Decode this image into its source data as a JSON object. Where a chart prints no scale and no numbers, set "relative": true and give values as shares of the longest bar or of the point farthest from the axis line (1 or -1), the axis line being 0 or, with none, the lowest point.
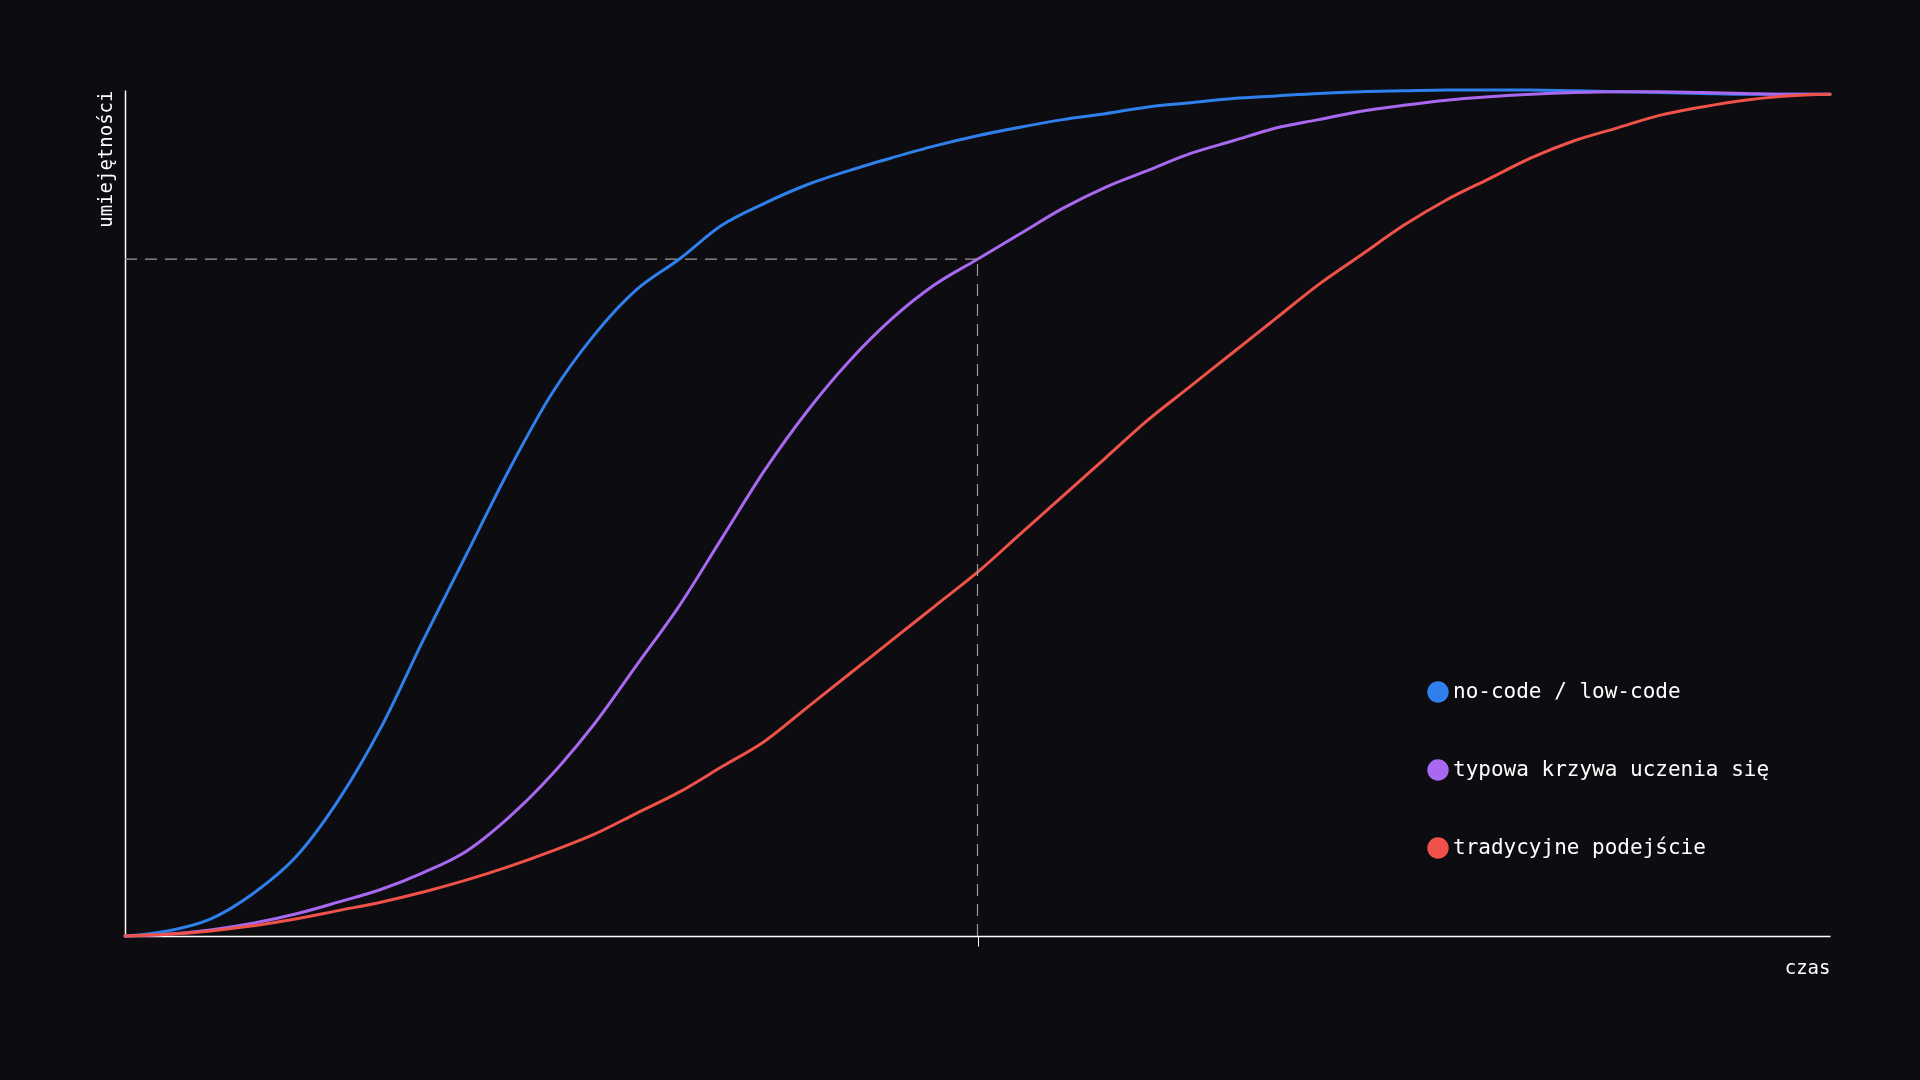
{
  "chart_data": {
    "type": "line",
    "relative": true,
    "xlabel": "czas",
    "ylabel": "umiejętności",
    "categories": [
      null,
      null,
      null,
      null,
      null,
      null,
      null,
      null,
      null,
      null,
      null,
      null,
      null,
      null,
      null,
      null,
      null,
      null,
      null,
      null,
      null,
      null,
      null,
      null,
      null,
      null,
      null,
      null,
      null,
      null,
      null,
      null,
      null,
      null,
      null,
      null,
      null,
      null,
      null,
      null,
      null
    ],
    "series": [
      {
        "name": "no-code / low-code",
        "color": "#2f80ed",
        "values": [
          0,
          0.006,
          0.02,
          0.05,
          0.093,
          0.16,
          0.246,
          0.35,
          0.45,
          0.55,
          0.64,
          0.71,
          0.764,
          0.8,
          0.84,
          0.866,
          0.888,
          0.905,
          0.92,
          0.934,
          0.946,
          0.956,
          0.965,
          0.972,
          0.98,
          0.985,
          0.99,
          0.993,
          0.996,
          0.998,
          0.999,
          1,
          1,
          1,
          0.999,
          0.998,
          0.997,
          0.996,
          0.995,
          0.995,
          0.995
        ]
      },
      {
        "name": "typowa krzywa uczenia się",
        "color": "#a868f0",
        "values": [
          0,
          0.002,
          0.007,
          0.015,
          0.026,
          0.04,
          0.055,
          0.075,
          0.1,
          0.14,
          0.19,
          0.25,
          0.32,
          0.39,
          0.47,
          0.55,
          0.62,
          0.68,
          0.73,
          0.77,
          0.8,
          0.83,
          0.86,
          0.885,
          0.905,
          0.925,
          0.94,
          0.955,
          0.965,
          0.975,
          0.982,
          0.988,
          0.992,
          0.995,
          0.997,
          0.998,
          0.998,
          0.997,
          0.996,
          0.995,
          0.995
        ]
      },
      {
        "name": "tradycyjne podejście",
        "color": "#f0524a",
        "values": [
          0,
          0.002,
          0.006,
          0.012,
          0.02,
          0.03,
          0.04,
          0.052,
          0.066,
          0.082,
          0.1,
          0.12,
          0.145,
          0.17,
          0.2,
          0.23,
          0.27,
          0.31,
          0.35,
          0.39,
          0.43,
          0.475,
          0.52,
          0.565,
          0.61,
          0.65,
          0.69,
          0.73,
          0.77,
          0.805,
          0.84,
          0.87,
          0.895,
          0.92,
          0.94,
          0.955,
          0.97,
          0.98,
          0.988,
          0.993,
          0.995
        ]
      }
    ],
    "ref_lines": [
      {
        "axis": "y",
        "value": 0.8,
        "color": "#9a9a9a",
        "line_style": "dashed"
      }
    ],
    "legend": "bottom right",
    "grid": false,
    "marker": "none",
    "line_style": "solid"
  }
}
